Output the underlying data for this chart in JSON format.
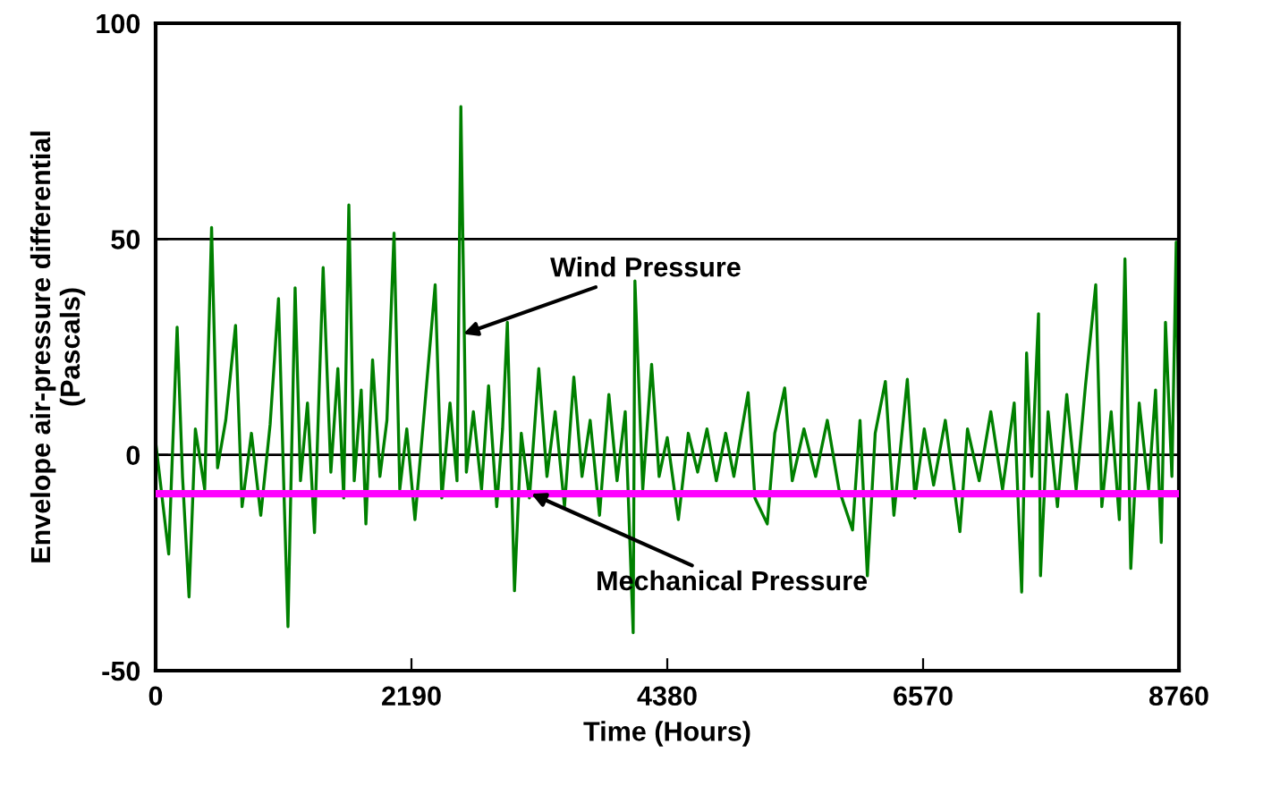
{
  "chart_data": {
    "type": "line",
    "xlabel": "Time (Hours)",
    "ylabel": "Envelope air-pressure differential\n(Pascals)",
    "xlim": [
      0,
      8760
    ],
    "xticks": [
      0,
      2190,
      4380,
      6570,
      8760
    ],
    "ylim": [
      -50,
      100
    ],
    "yticks": [
      -50,
      0,
      50,
      100
    ],
    "grid": "y",
    "marker": "none",
    "line_style": "solid",
    "series": [
      {
        "color": "#008000",
        "x": [
          0,
          112,
          184,
          230,
          286,
          340,
          420,
          479,
          530,
          600,
          684,
          740,
          820,
          900,
          980,
          1052,
          1100,
          1133,
          1194,
          1240,
          1300,
          1360,
          1434,
          1500,
          1560,
          1610,
          1654,
          1700,
          1760,
          1800,
          1857,
          1920,
          1980,
          2041,
          2090,
          2150,
          2220,
          2300,
          2393,
          2450,
          2520,
          2580,
          2613,
          2660,
          2720,
          2790,
          2850,
          2920,
          2970,
          3011,
          3072,
          3130,
          3200,
          3280,
          3350,
          3420,
          3500,
          3580,
          3650,
          3720,
          3800,
          3880,
          3950,
          4020,
          4088,
          4103,
          4170,
          4246,
          4310,
          4380,
          4475,
          4560,
          4640,
          4720,
          4800,
          4880,
          4950,
          5072,
          5130,
          5236,
          5300,
          5385,
          5450,
          5550,
          5650,
          5750,
          5850,
          5966,
          6030,
          6093,
          6160,
          6247,
          6320,
          6435,
          6500,
          6580,
          6660,
          6760,
          6885,
          6950,
          7050,
          7150,
          7250,
          7350,
          7414,
          7456,
          7500,
          7558,
          7575,
          7640,
          7720,
          7800,
          7880,
          7960,
          8048,
          8100,
          8180,
          8250,
          8298,
          8348,
          8420,
          8500,
          8560,
          8609,
          8645,
          8700,
          8737,
          8760
        ],
        "values": [
          3,
          -23,
          29.6,
          -5,
          -32.9,
          6,
          -8,
          52.7,
          -3,
          8,
          30,
          -12,
          5,
          -14,
          7,
          36.2,
          -10,
          -39.8,
          38.7,
          -6,
          12,
          -18,
          43.4,
          -4,
          20,
          -10,
          57.9,
          -6,
          15,
          -16,
          22,
          -5,
          8,
          51.4,
          -8,
          6,
          -15,
          10,
          39.4,
          -10,
          12,
          -6,
          80.7,
          -4,
          10,
          -8,
          16,
          -12,
          6,
          30.7,
          -31.5,
          5,
          -10,
          20,
          -5,
          10,
          -12,
          18,
          -5,
          8,
          -14,
          14,
          -6,
          10,
          -41.2,
          40.3,
          -8,
          21,
          -5,
          4,
          -15,
          5,
          -4,
          6,
          -6,
          5,
          -5,
          14.4,
          -10,
          -16,
          5,
          15.5,
          -6,
          6,
          -5,
          8,
          -8,
          -17.4,
          8,
          -28,
          5,
          17,
          -14,
          17.5,
          -10,
          6,
          -7,
          8,
          -17.8,
          6,
          -6,
          10,
          -8,
          12,
          -31.8,
          23.6,
          -5,
          32.7,
          -28,
          10,
          -12,
          14,
          -8,
          16,
          39.4,
          -12,
          10,
          -15,
          45.4,
          -26.3,
          12,
          -8,
          15,
          -20.3,
          30.7,
          -5,
          49.3,
          2
        ]
      },
      {
        "color": "#ff00ff",
        "x": [
          0,
          8760
        ],
        "values": [
          -9,
          -9
        ]
      }
    ],
    "annotations": [
      {
        "text": "Wind Pressure",
        "x": 2633,
        "y": 28
      },
      {
        "text": "Mechanical Pressure",
        "x": 3215,
        "y": -9
      }
    ]
  }
}
